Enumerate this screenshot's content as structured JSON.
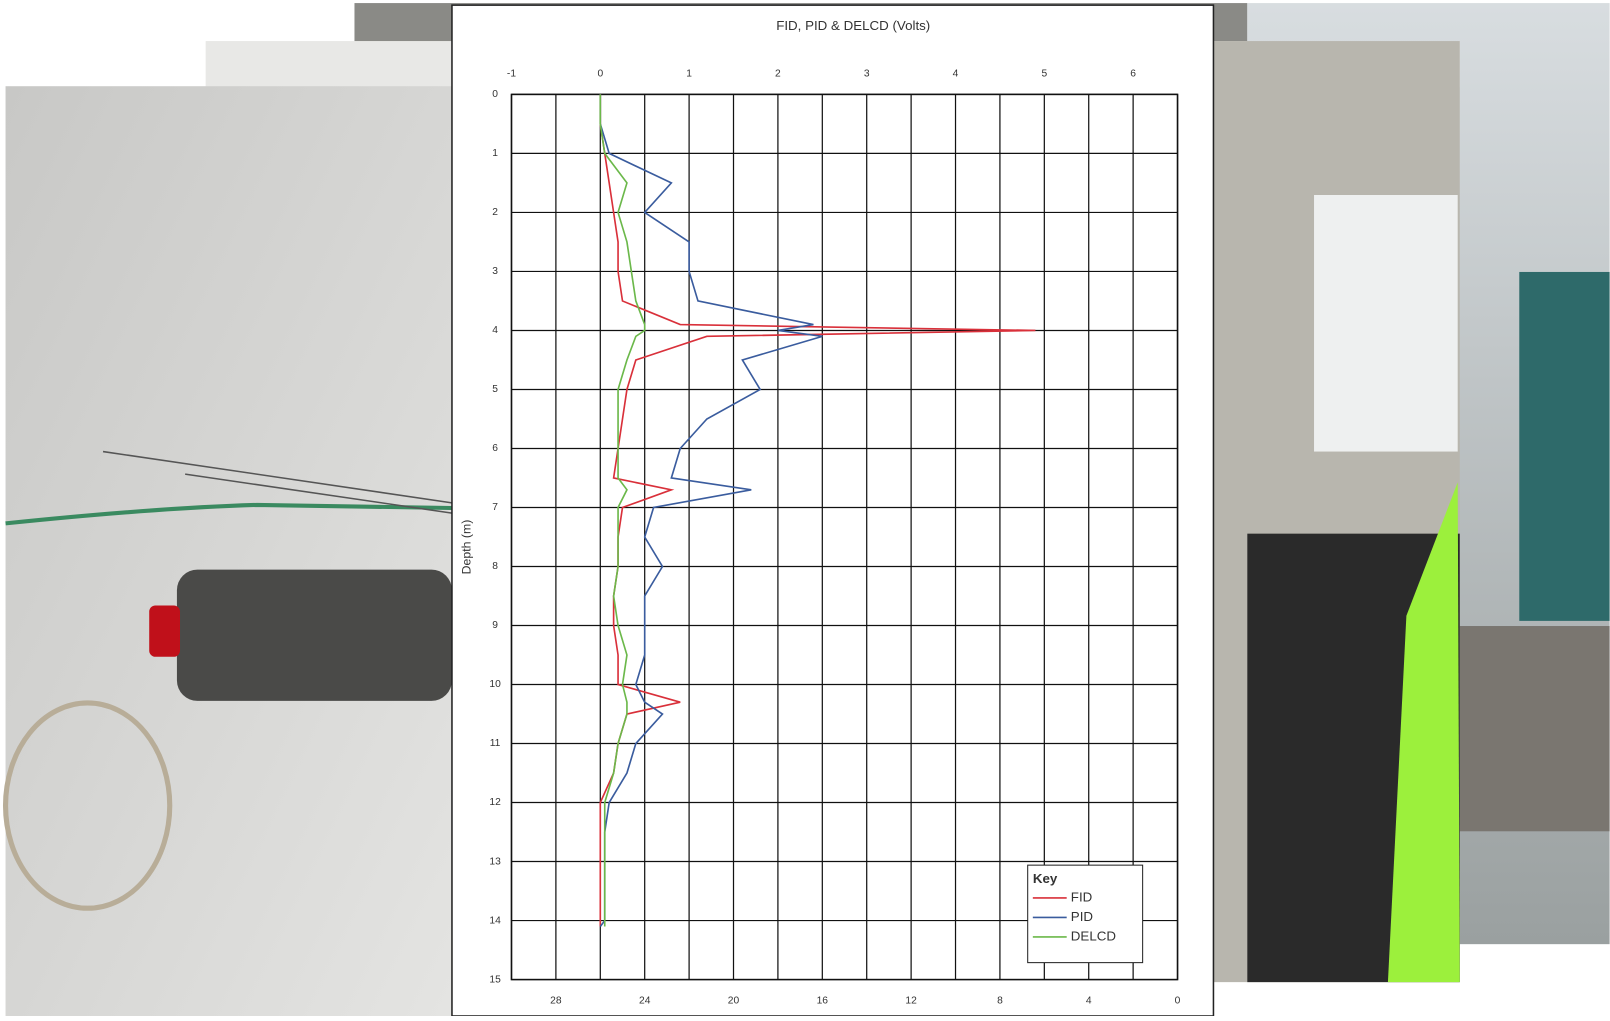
{
  "chart_data": {
    "type": "line",
    "title": "FID, PID & DELCD (Volts)",
    "y_label": "Depth (m)",
    "y": [
      0,
      0.5,
      1,
      1.5,
      2,
      2.5,
      3,
      3.5,
      3.9,
      4,
      4.1,
      4.5,
      5,
      5.5,
      6,
      6.5,
      6.7,
      7,
      7.5,
      8,
      8.5,
      9,
      9.5,
      10,
      10.3,
      10.5,
      11,
      11.5,
      12,
      12.5,
      13,
      13.5,
      14,
      14.1
    ],
    "series": [
      {
        "name": "FID",
        "color": "#d9303a",
        "values": [
          0,
          0,
          0.05,
          0.1,
          0.15,
          0.2,
          0.2,
          0.25,
          0.9,
          4.9,
          1.2,
          0.4,
          0.3,
          0.25,
          0.2,
          0.15,
          0.8,
          0.25,
          0.2,
          0.2,
          0.15,
          0.15,
          0.2,
          0.2,
          0.9,
          0.3,
          0.2,
          0.15,
          0,
          0,
          0,
          0,
          0,
          0
        ]
      },
      {
        "name": "PID",
        "color": "#3a5c9e",
        "values": [
          0,
          0,
          0.1,
          0.8,
          0.5,
          1.0,
          1.0,
          1.1,
          2.4,
          2.0,
          2.5,
          1.6,
          1.8,
          1.2,
          0.9,
          0.8,
          1.7,
          0.6,
          0.5,
          0.7,
          0.5,
          0.5,
          0.5,
          0.4,
          0.5,
          0.7,
          0.4,
          0.3,
          0.1,
          0.05,
          0.05,
          0.05,
          0.05,
          0
        ]
      },
      {
        "name": "DELCD",
        "color": "#6bb84a",
        "values": [
          0,
          0,
          0.05,
          0.3,
          0.2,
          0.3,
          0.35,
          0.4,
          0.5,
          0.5,
          0.4,
          0.3,
          0.2,
          0.2,
          0.2,
          0.2,
          0.3,
          0.2,
          0.2,
          0.2,
          0.15,
          0.2,
          0.3,
          0.25,
          0.3,
          0.3,
          0.2,
          0.15,
          0.05,
          0.05,
          0.05,
          0.05,
          0.05,
          0.05
        ]
      }
    ],
    "xlim": [
      -1,
      6.5
    ],
    "xticks": [
      -1,
      0,
      1,
      2,
      3,
      4,
      5,
      6
    ],
    "x2lim": [
      30,
      0
    ],
    "x2ticks": [
      28,
      24,
      20,
      16,
      12,
      8,
      4,
      0
    ],
    "ylim": [
      0,
      15
    ],
    "yticks": [
      0,
      1,
      2,
      3,
      4,
      5,
      6,
      7,
      8,
      9,
      10,
      11,
      12,
      13,
      14,
      15
    ],
    "grid": true,
    "legend_title": "Key",
    "legend": "lower right"
  }
}
